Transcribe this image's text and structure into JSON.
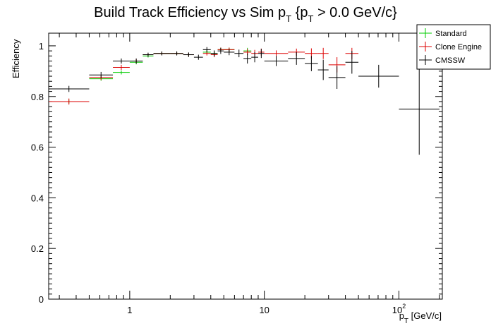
{
  "chart_data": {
    "type": "scatter",
    "title_main": "Build Track Efficiency vs Sim p",
    "title_sub1": "T",
    "title_mid": " {p",
    "title_sub2": "T",
    "title_tail": " > 0.0 GeV/c}",
    "xlabel_main": "p",
    "xlabel_sub": "T",
    "xlabel_unit": " [GeV/c]",
    "ylabel": "Efficiency",
    "xscale": "log",
    "xlim": [
      0.25,
      210
    ],
    "ylim": [
      0,
      1.05
    ],
    "x_tick_labels": [
      {
        "value": 1,
        "label": "1"
      },
      {
        "value": 10,
        "label": "10"
      },
      {
        "value": 100,
        "label": "10",
        "exp": "2"
      }
    ],
    "y_tick_labels": [
      {
        "value": 0,
        "label": "0"
      },
      {
        "value": 0.2,
        "label": "0.2"
      },
      {
        "value": 0.4,
        "label": "0.4"
      },
      {
        "value": 0.6,
        "label": "0.6"
      },
      {
        "value": 0.8,
        "label": "0.8"
      },
      {
        "value": 1,
        "label": "1"
      }
    ],
    "legend_position": "top-right",
    "series": [
      {
        "name": "Standard",
        "color": "#00cc00",
        "points": [
          {
            "x0": 0.25,
            "x1": 0.5,
            "y": 0.78,
            "err": 0.008
          },
          {
            "x0": 0.5,
            "x1": 0.75,
            "y": 0.87,
            "err": 0.008
          },
          {
            "x0": 0.75,
            "x1": 1.0,
            "y": 0.895,
            "err": 0.008
          },
          {
            "x0": 1.0,
            "x1": 1.25,
            "y": 0.935,
            "err": 0.008
          },
          {
            "x0": 1.25,
            "x1": 1.5,
            "y": 0.96,
            "err": 0.006
          },
          {
            "x0": 1.5,
            "x1": 2.0,
            "y": 0.97,
            "err": 0.006
          },
          {
            "x0": 2.0,
            "x1": 2.5,
            "y": 0.97,
            "err": 0.006
          },
          {
            "x0": 2.5,
            "x1": 3.0,
            "y": 0.965,
            "err": 0.007
          },
          {
            "x0": 3.5,
            "x1": 4.0,
            "y": 0.975,
            "err": 0.008
          },
          {
            "x0": 4.0,
            "x1": 4.5,
            "y": 0.97,
            "err": 0.01
          },
          {
            "x0": 4.5,
            "x1": 5.0,
            "y": 0.985,
            "err": 0.008
          },
          {
            "x0": 5.0,
            "x1": 6.0,
            "y": 0.985,
            "err": 0.008
          },
          {
            "x0": 7.0,
            "x1": 8.0,
            "y": 0.98,
            "err": 0.012
          }
        ]
      },
      {
        "name": "Clone Engine",
        "color": "#dd0000",
        "points": [
          {
            "x0": 0.25,
            "x1": 0.5,
            "y": 0.78,
            "err": 0.012
          },
          {
            "x0": 0.5,
            "x1": 0.75,
            "y": 0.875,
            "err": 0.01
          },
          {
            "x0": 0.75,
            "x1": 1.0,
            "y": 0.915,
            "err": 0.01
          },
          {
            "x0": 1.0,
            "x1": 1.25,
            "y": 0.94,
            "err": 0.008
          },
          {
            "x0": 1.25,
            "x1": 1.5,
            "y": 0.965,
            "err": 0.006
          },
          {
            "x0": 1.5,
            "x1": 2.0,
            "y": 0.97,
            "err": 0.006
          },
          {
            "x0": 2.0,
            "x1": 2.5,
            "y": 0.97,
            "err": 0.006
          },
          {
            "x0": 2.5,
            "x1": 3.0,
            "y": 0.965,
            "err": 0.007
          },
          {
            "x0": 3.5,
            "x1": 4.0,
            "y": 0.97,
            "err": 0.008
          },
          {
            "x0": 4.0,
            "x1": 4.5,
            "y": 0.965,
            "err": 0.01
          },
          {
            "x0": 4.5,
            "x1": 5.0,
            "y": 0.985,
            "err": 0.008
          },
          {
            "x0": 5.0,
            "x1": 6.0,
            "y": 0.985,
            "err": 0.008
          },
          {
            "x0": 7.0,
            "x1": 8.0,
            "y": 0.975,
            "err": 0.012
          },
          {
            "x0": 8.0,
            "x1": 9.0,
            "y": 0.97,
            "err": 0.014
          },
          {
            "x0": 9.0,
            "x1": 10.0,
            "y": 0.975,
            "err": 0.014
          },
          {
            "x0": 10.0,
            "x1": 15.0,
            "y": 0.97,
            "err": 0.012
          },
          {
            "x0": 15.0,
            "x1": 20.0,
            "y": 0.975,
            "err": 0.014
          },
          {
            "x0": 20.0,
            "x1": 25.0,
            "y": 0.97,
            "err": 0.02
          },
          {
            "x0": 25.0,
            "x1": 30.0,
            "y": 0.97,
            "err": 0.022
          },
          {
            "x0": 30.0,
            "x1": 40.0,
            "y": 0.925,
            "err": 0.03
          },
          {
            "x0": 40.0,
            "x1": 50.0,
            "y": 0.97,
            "err": 0.022
          }
        ]
      },
      {
        "name": "CMSSW",
        "color": "#000000",
        "points": [
          {
            "x0": 0.25,
            "x1": 0.5,
            "y": 0.83,
            "err": 0.012
          },
          {
            "x0": 0.5,
            "x1": 0.75,
            "y": 0.885,
            "err": 0.012
          },
          {
            "x0": 0.75,
            "x1": 1.0,
            "y": 0.94,
            "err": 0.01
          },
          {
            "x0": 1.0,
            "x1": 1.25,
            "y": 0.94,
            "err": 0.01
          },
          {
            "x0": 1.25,
            "x1": 1.5,
            "y": 0.965,
            "err": 0.008
          },
          {
            "x0": 1.5,
            "x1": 2.0,
            "y": 0.97,
            "err": 0.008
          },
          {
            "x0": 2.0,
            "x1": 2.5,
            "y": 0.97,
            "err": 0.008
          },
          {
            "x0": 2.5,
            "x1": 3.0,
            "y": 0.965,
            "err": 0.009
          },
          {
            "x0": 3.0,
            "x1": 3.5,
            "y": 0.955,
            "err": 0.01
          },
          {
            "x0": 3.5,
            "x1": 4.0,
            "y": 0.985,
            "err": 0.01
          },
          {
            "x0": 4.0,
            "x1": 4.5,
            "y": 0.97,
            "err": 0.012
          },
          {
            "x0": 4.5,
            "x1": 5.0,
            "y": 0.98,
            "err": 0.012
          },
          {
            "x0": 5.0,
            "x1": 6.0,
            "y": 0.975,
            "err": 0.012
          },
          {
            "x0": 6.0,
            "x1": 7.0,
            "y": 0.97,
            "err": 0.015
          },
          {
            "x0": 7.0,
            "x1": 8.0,
            "y": 0.95,
            "err": 0.02
          },
          {
            "x0": 8.0,
            "x1": 9.0,
            "y": 0.955,
            "err": 0.02
          },
          {
            "x0": 9.0,
            "x1": 10.0,
            "y": 0.97,
            "err": 0.018
          },
          {
            "x0": 10.0,
            "x1": 15.0,
            "y": 0.94,
            "err": 0.02
          },
          {
            "x0": 15.0,
            "x1": 20.0,
            "y": 0.95,
            "err": 0.025
          },
          {
            "x0": 20.0,
            "x1": 25.0,
            "y": 0.93,
            "err": 0.03
          },
          {
            "x0": 25.0,
            "x1": 30.0,
            "y": 0.905,
            "err": 0.04
          },
          {
            "x0": 30.0,
            "x1": 40.0,
            "y": 0.875,
            "err": 0.045
          },
          {
            "x0": 40.0,
            "x1": 50.0,
            "y": 0.935,
            "err": 0.045
          },
          {
            "x0": 50.0,
            "x1": 100.0,
            "y": 0.88,
            "err": 0.045
          },
          {
            "x0": 100.0,
            "x1": 200.0,
            "y": 0.75,
            "err": 0.18
          }
        ]
      }
    ]
  }
}
